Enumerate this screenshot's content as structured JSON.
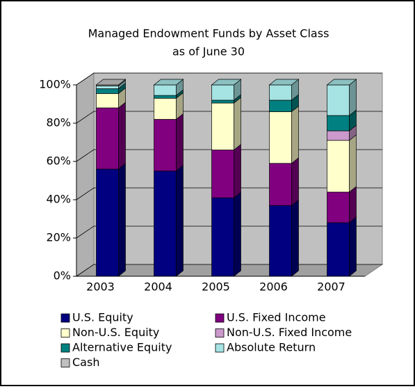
{
  "chart_data": {
    "type": "stacked-bar-3d",
    "title": "Managed Endowment Funds by Asset Class",
    "subtitle": "as of June 30",
    "categories": [
      "2003",
      "2004",
      "2005",
      "2006",
      "2007"
    ],
    "series": [
      {
        "name": "U.S. Equity",
        "color": "#000080",
        "values": [
          56,
          55,
          41,
          37,
          28
        ]
      },
      {
        "name": "U.S. Fixed Income",
        "color": "#800080",
        "values": [
          32,
          27,
          25,
          22,
          16
        ]
      },
      {
        "name": "Non-U.S. Equity",
        "color": "#ffffcc",
        "values": [
          7.5,
          11,
          24.5,
          27,
          27
        ]
      },
      {
        "name": "Non-U.S. Fixed Income",
        "color": "#cc99cc",
        "values": [
          0,
          0,
          0,
          0,
          5
        ]
      },
      {
        "name": "Alternative Equity",
        "color": "#008080",
        "values": [
          2.5,
          1.5,
          1.5,
          6,
          8
        ]
      },
      {
        "name": "Absolute Return",
        "color": "#a6e3e3",
        "values": [
          1.5,
          5.5,
          8,
          8,
          16
        ]
      },
      {
        "name": "Cash",
        "color": "#c0c0c0",
        "values": [
          0.5,
          0,
          0,
          0,
          0
        ]
      }
    ],
    "ylim": [
      0,
      100
    ],
    "yticks": [
      {
        "value": 0,
        "label": "0%"
      },
      {
        "value": 20,
        "label": "20%"
      },
      {
        "value": 40,
        "label": "40%"
      },
      {
        "value": 60,
        "label": "60%"
      },
      {
        "value": 80,
        "label": "80%"
      },
      {
        "value": 100,
        "label": "100%"
      }
    ],
    "grid": true
  }
}
